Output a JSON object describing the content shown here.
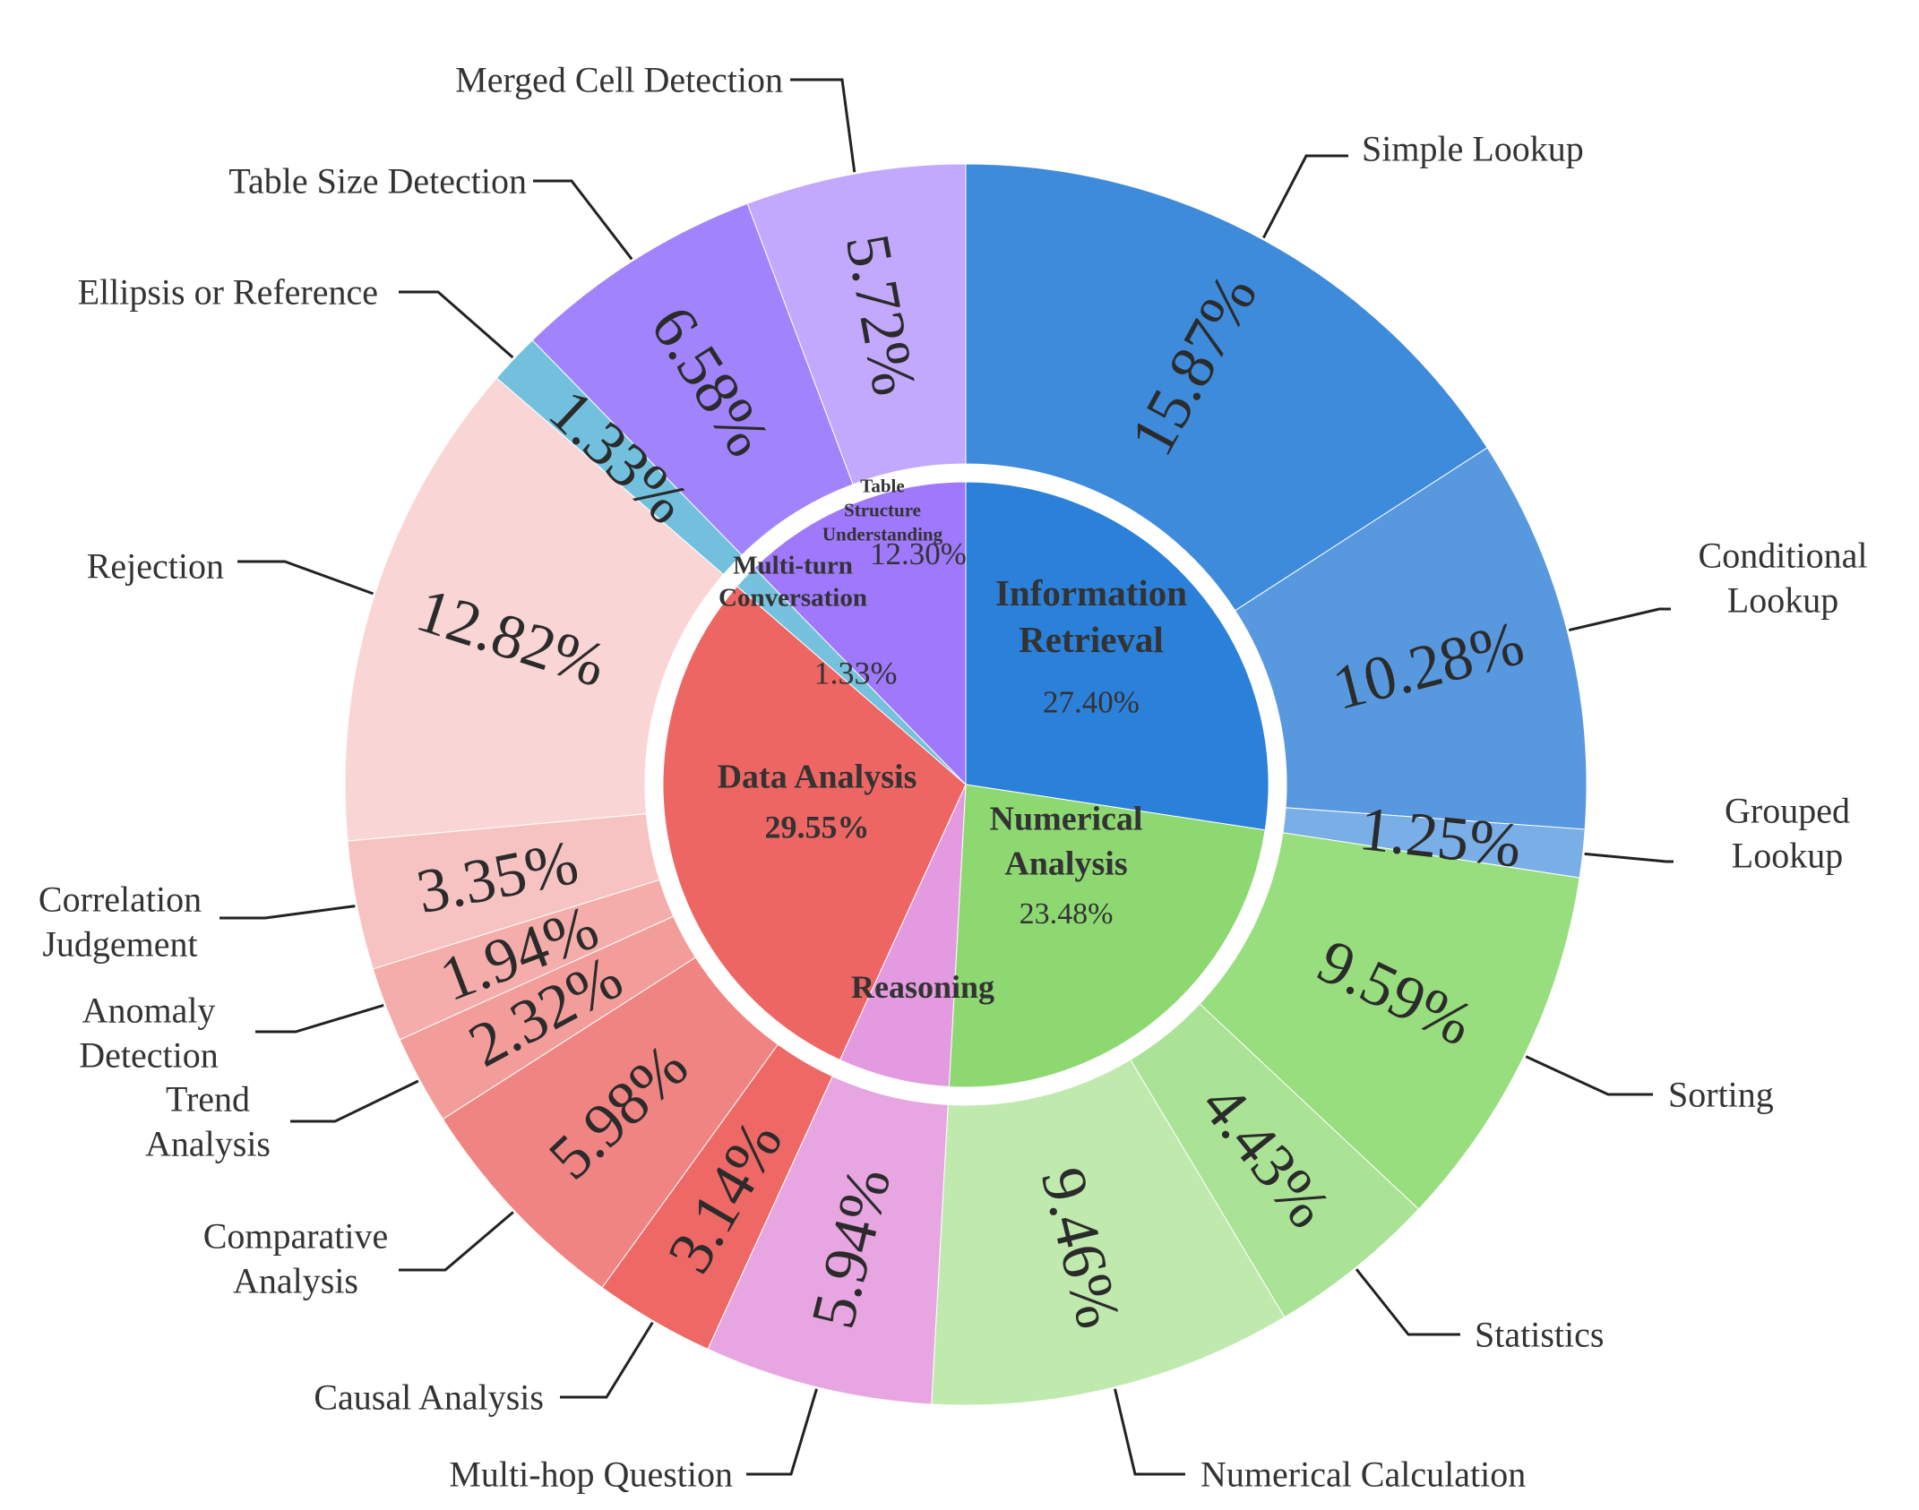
{
  "chart_data": {
    "type": "sunburst",
    "inner": [
      {
        "name": "Information Retrieval",
        "lines": [
          "Information",
          "Retrieval"
        ],
        "value": 27.4,
        "label": "27.40%",
        "color": "#2b80d9"
      },
      {
        "name": "Numerical Analysis",
        "lines": [
          "Numerical",
          "Analysis"
        ],
        "value": 23.48,
        "label": "23.48%",
        "color": "#8ed872"
      },
      {
        "name": "Reasoning",
        "lines": [
          "Reasoning"
        ],
        "value": 5.94,
        "label": "",
        "color": "#e39ae0"
      },
      {
        "name": "Data Analysis",
        "lines": [
          "Data Analysis"
        ],
        "value": 29.55,
        "label": "29.55%",
        "color": "#ee6664"
      },
      {
        "name": "Multi-turn Conversation",
        "lines": [
          "Multi-turn",
          "Conversation"
        ],
        "value": 1.33,
        "label": "1.33%",
        "color": "#75c1de"
      },
      {
        "name": "Table Structure Understanding",
        "lines": [
          "Table",
          "Structure",
          "Understanding"
        ],
        "value": 12.3,
        "label": "12.30%",
        "color": "#9f78fb"
      }
    ],
    "outer": [
      {
        "name": "Simple Lookup",
        "lines": [
          "Simple Lookup"
        ],
        "value": 15.87,
        "label": "15.87%",
        "parent": "Information Retrieval",
        "color": "#3f8bdb"
      },
      {
        "name": "Conditional Lookup",
        "lines": [
          "Conditional",
          "Lookup"
        ],
        "value": 10.28,
        "label": "10.28%",
        "parent": "Information Retrieval",
        "color": "#5898de"
      },
      {
        "name": "Grouped Lookup",
        "lines": [
          "Grouped",
          "Lookup"
        ],
        "value": 1.25,
        "label": "1.25%",
        "parent": "Information Retrieval",
        "color": "#7aaee6"
      },
      {
        "name": "Sorting",
        "lines": [
          "Sorting"
        ],
        "value": 9.59,
        "label": "9.59%",
        "parent": "Numerical Analysis",
        "color": "#98dd7e"
      },
      {
        "name": "Statistics",
        "lines": [
          "Statistics"
        ],
        "value": 4.43,
        "label": "4.43%",
        "parent": "Numerical Analysis",
        "color": "#aae296"
      },
      {
        "name": "Numerical Calculation",
        "lines": [
          "Numerical Calculation"
        ],
        "value": 9.46,
        "label": "9.46%",
        "parent": "Numerical Analysis",
        "color": "#bfe9ad"
      },
      {
        "name": "Multi-hop Question",
        "lines": [
          "Multi-hop Question"
        ],
        "value": 5.94,
        "label": "5.94%",
        "parent": "Reasoning",
        "color": "#e7a6e2"
      },
      {
        "name": "Causal Analysis",
        "lines": [
          "Causal Analysis"
        ],
        "value": 3.14,
        "label": "3.14%",
        "parent": "Data Analysis",
        "color": "#ee6866"
      },
      {
        "name": "Comparative Analysis",
        "lines": [
          "Comparative",
          "Analysis"
        ],
        "value": 5.98,
        "label": "5.98%",
        "parent": "Data Analysis",
        "color": "#f08482"
      },
      {
        "name": "Trend Analysis",
        "lines": [
          "Trend",
          "Analysis"
        ],
        "value": 2.32,
        "label": "2.32%",
        "parent": "Data Analysis",
        "color": "#f39d9b"
      },
      {
        "name": "Anomaly Detection",
        "lines": [
          "Anomaly",
          "Detection"
        ],
        "value": 1.94,
        "label": "1.94%",
        "parent": "Data Analysis",
        "color": "#f5adab"
      },
      {
        "name": "Correlation Judgement",
        "lines": [
          "Correlation",
          "Judgement"
        ],
        "value": 3.35,
        "label": "3.35%",
        "parent": "Data Analysis",
        "color": "#f7c3c2"
      },
      {
        "name": "Rejection",
        "lines": [
          "Rejection"
        ],
        "value": 12.82,
        "label": "12.82%",
        "parent": "Data Analysis",
        "color": "#f9d6d5"
      },
      {
        "name": "Ellipsis or Reference",
        "lines": [
          "Ellipsis or Reference"
        ],
        "value": 1.33,
        "label": "1.33%",
        "parent": "Multi-turn Conversation",
        "color": "#73c0de"
      },
      {
        "name": "Table Size Detection",
        "lines": [
          "Table Size Detection"
        ],
        "value": 6.58,
        "label": "6.58%",
        "parent": "Table Structure Understanding",
        "color": "#a184fc"
      },
      {
        "name": "Merged Cell Detection",
        "lines": [
          "Merged Cell Detection"
        ],
        "value": 5.72,
        "label": "5.72%",
        "parent": "Table Structure Understanding",
        "color": "#c3a9fd"
      }
    ],
    "start": "12 o'clock",
    "direction": "clockwise",
    "legend": "none"
  }
}
